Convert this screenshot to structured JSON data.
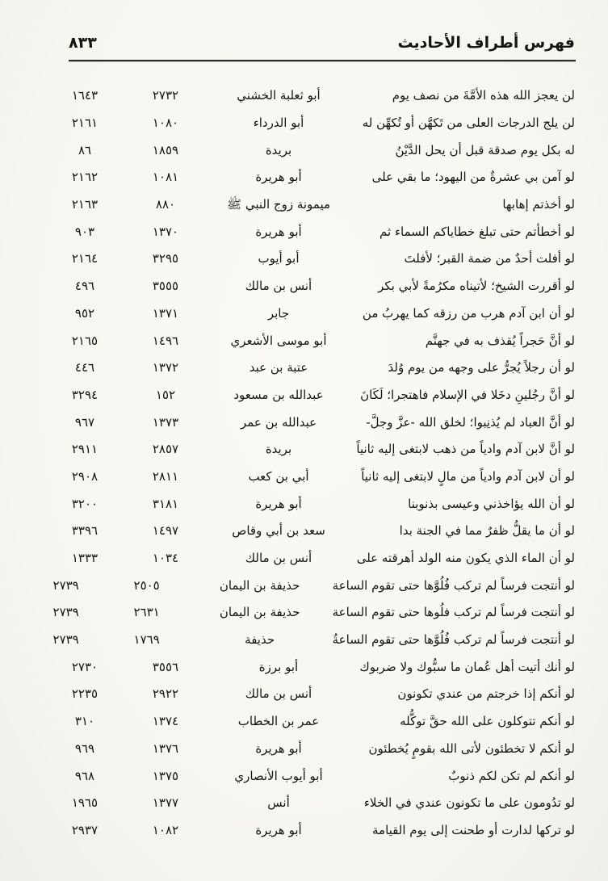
{
  "header": {
    "title": "فهرس أطراف الأحاديث",
    "page_number": "٨٣٣"
  },
  "table": {
    "rows": [
      {
        "text": "لن يعجز الله هذه الأمَّةَ من نصف يوم",
        "narrator": "أبو ثعلبة الخشني",
        "num1": "٢٧٣٢",
        "num2": "١٦٤٣"
      },
      {
        "text": "لن يلج الدرجات العلى من تَكهَّن أو تُكهِّن له",
        "narrator": "أبو الدرداء",
        "num1": "١٠٨٠",
        "num2": "٢١٦١"
      },
      {
        "text": "له بكل يوم صدقة قبل أن يحل الدَّيْنُ",
        "narrator": "بريدة",
        "num1": "١٨٥٩",
        "num2": "٨٦"
      },
      {
        "text": "لو آمن بي عشرةٌ من اليهود؛ ما بقي على",
        "narrator": "أبو هريرة",
        "num1": "١٠٨١",
        "num2": "٢١٦٢"
      },
      {
        "text": "لو أخذتم إهابها",
        "narrator": "ميمونة زوج النبي ﷺ",
        "num1": "٨٨٠",
        "num2": "٢١٦٣"
      },
      {
        "text": "لو أخطأتم حتى تبلغ خطاياكم السماء ثم",
        "narrator": "أبو هريرة",
        "num1": "١٣٧٠",
        "num2": "٩٠٣"
      },
      {
        "text": "لو أفلت أحدٌ من ضمة القبر؛ لأفلتَ",
        "narrator": "أبو أيوب",
        "num1": "٣٢٩٥",
        "num2": "٢١٦٤"
      },
      {
        "text": "لو أقررت الشيخ؛ لأتيناه مكرُمةً لأبي بكر",
        "narrator": "أنس بن مالك",
        "num1": "٣٥٥٥",
        "num2": "٤٩٦"
      },
      {
        "text": "لو أن ابن آدم هرب من رزقه كما يهربُ من",
        "narrator": "جابر",
        "num1": "١٣٧١",
        "num2": "٩٥٢"
      },
      {
        "text": "لو أنَّ حَجراً يُقذف به في جهنَّم",
        "narrator": "أبو موسى الأشعري",
        "num1": "١٤٩٦",
        "num2": "٢١٦٥"
      },
      {
        "text": "لو أن رجلاً يُجرُّ على وجهه من يوم وُلدَ",
        "narrator": "عتبة بن عبد",
        "num1": "١٣٧٢",
        "num2": "٤٤٦"
      },
      {
        "text": "لو أنَّ رجُلينِ دخَلا في الإسلام فاهتجرا؛ لَكَانَ",
        "narrator": "عبدالله بن مسعود",
        "num1": "١٥٢",
        "num2": "٣٢٩٤"
      },
      {
        "text": "لو أنَّ العباد لم يُذنِبوا؛ لخلق الله -عزَّ وجلَّ-",
        "narrator": "عبدالله بن عمر",
        "num1": "١٣٧٣",
        "num2": "٩٦٧"
      },
      {
        "text": "لو أنَّ لابن آدم وادياً من ذهب لابتغى إليه ثانياً",
        "narrator": "بريدة",
        "num1": "٢٨٥٧",
        "num2": "٢٩١١"
      },
      {
        "text": "لو أن لابن آدم وادياً من مالٍ لابتغى إليه ثانياً",
        "narrator": "أبي بن كعب",
        "num1": "٢٨١١",
        "num2": "٢٩٠٨"
      },
      {
        "text": "لو أن الله يؤاخذني وعيسى بذنوبنا",
        "narrator": "أبو هريرة",
        "num1": "٣١٨١",
        "num2": "٣٢٠٠"
      },
      {
        "text": "لو أن ما يقلُّ ظفرٌ مما في الجنة بدا",
        "narrator": "سعد بن أبي وقاص",
        "num1": "١٤٩٧",
        "num2": "٣٣٩٦"
      },
      {
        "text": "لو أن الماء الذي يكون منه الولد أهرقته على",
        "narrator": "أنس بن مالك",
        "num1": "١٠٣٤",
        "num2": "١٣٣٣"
      },
      {
        "text": "لو أنتجت فرساً لم تركب فُلُوَّها حتى تقوم الساعة",
        "narrator": "حذيفة بن اليمان",
        "num1": "٢٥٠٥",
        "num2": "٢٧٣٩"
      },
      {
        "text": "لو أنتجت فرساً لم تركب فلُوها حتى تقوم الساعة",
        "narrator": "حذيفة بن اليمان",
        "num1": "٢٦٣١",
        "num2": "٢٧٣٩"
      },
      {
        "text": "لو أنتجت فرساً لم تركب فُلُوَّها حتى تقوم الساعةُ",
        "narrator": "حذيفة",
        "num1": "١٧٦٩",
        "num2": "٢٧٣٩"
      },
      {
        "text": "لو أنك أتيت أهل عُمان ما سبُّوك ولا ضربوك",
        "narrator": "أبو برزة",
        "num1": "٣٥٥٦",
        "num2": "٢٧٣٠"
      },
      {
        "text": "لو أنكم إذا خرجتم من عندي تكونون",
        "narrator": "أنس بن مالك",
        "num1": "٢٩٢٢",
        "num2": "٢٢٣٥"
      },
      {
        "text": "لو أنكم تتوكلون على الله حقَّ توكُّله",
        "narrator": "عمر بن الخطاب",
        "num1": "١٣٧٤",
        "num2": "٣١٠"
      },
      {
        "text": "لو أنكم لا تخطئون لأتى الله بقومٍ يُخطئون",
        "narrator": "أبو هريرة",
        "num1": "١٣٧٦",
        "num2": "٩٦٩"
      },
      {
        "text": "لو أنكم لم تكن لكم ذنوبٌ",
        "narrator": "أبو أيوب الأنصاري",
        "num1": "١٣٧٥",
        "num2": "٩٦٨"
      },
      {
        "text": "لو تدُومون على ما تكونون عندي في الخلاء",
        "narrator": "أنس",
        "num1": "١٣٧٧",
        "num2": "١٩٦٥"
      },
      {
        "text": "لو تركها لدارت أو طحنت إلى يوم القيامة",
        "narrator": "أبو هريرة",
        "num1": "١٠٨٢",
        "num2": "٢٩٣٧"
      }
    ]
  }
}
